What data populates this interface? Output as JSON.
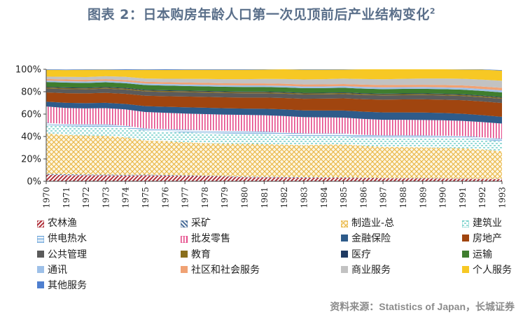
{
  "title": "图表 2：日本购房年龄人口第一次见顶前后产业结构变化",
  "title_sup": "2",
  "source": "资料来源：Statistics of Japan，长城证券",
  "chart_data": {
    "type": "area",
    "stacked": true,
    "x": [
      "1970",
      "1971",
      "1972",
      "1973",
      "1974",
      "1975",
      "1976",
      "1977",
      "1978",
      "1979",
      "1980",
      "1981",
      "1982",
      "1983",
      "1984",
      "1985",
      "1986",
      "1987",
      "1988",
      "1989",
      "1990",
      "1991",
      "1992",
      "1993"
    ],
    "y_ticks": [
      "0%",
      "20%",
      "40%",
      "60%",
      "80%",
      "100%"
    ],
    "ylim": [
      0,
      100
    ],
    "grid": false,
    "legend_position": "bottom",
    "series": [
      {
        "name": "农林渔",
        "color": "#b0303a",
        "pattern": "diag-red",
        "values": [
          5.9,
          5.5,
          5.4,
          5.3,
          5.1,
          5.3,
          5.1,
          4.8,
          4.6,
          4.3,
          3.6,
          3.5,
          3.4,
          3.2,
          3.2,
          3.1,
          2.9,
          2.7,
          2.6,
          2.5,
          2.4,
          2.3,
          2.1,
          2.0
        ]
      },
      {
        "name": "采矿",
        "color": "#4a6e9a",
        "pattern": "diag-blue",
        "values": [
          0.8,
          0.8,
          0.7,
          0.7,
          0.7,
          0.6,
          0.6,
          0.6,
          0.5,
          0.5,
          0.5,
          0.5,
          0.5,
          0.5,
          0.4,
          0.4,
          0.4,
          0.3,
          0.3,
          0.3,
          0.3,
          0.2,
          0.2,
          0.2
        ]
      },
      {
        "name": "制造业-总",
        "color": "#e8b23a",
        "pattern": "cross-yellow",
        "values": [
          36.0,
          35.2,
          34.8,
          34.6,
          33.5,
          30.5,
          30.2,
          29.5,
          29.0,
          28.8,
          29.4,
          29.3,
          28.9,
          28.6,
          29.2,
          29.5,
          28.5,
          27.8,
          27.7,
          27.5,
          27.2,
          27.0,
          26.1,
          24.6
        ]
      },
      {
        "name": "建筑业",
        "color": "#5cc7c0",
        "pattern": "dash-cyan",
        "values": [
          7.5,
          7.6,
          7.8,
          8.1,
          8.2,
          8.6,
          8.4,
          8.7,
          8.9,
          9.0,
          8.9,
          8.5,
          8.1,
          7.6,
          7.1,
          6.9,
          7.0,
          7.4,
          7.8,
          8.1,
          8.5,
          8.6,
          8.6,
          8.7
        ]
      },
      {
        "name": "供电热水",
        "color": "#5a9ad6",
        "pattern": "hbox-blue",
        "values": [
          2.1,
          2.1,
          2.2,
          2.2,
          2.2,
          2.2,
          2.3,
          2.4,
          2.6,
          2.6,
          2.5,
          2.6,
          2.7,
          2.8,
          2.8,
          2.8,
          2.8,
          2.7,
          2.6,
          2.5,
          2.4,
          2.4,
          2.4,
          2.5
        ]
      },
      {
        "name": "批发零售",
        "color": "#e54a8a",
        "pattern": "vstripe-pink",
        "values": [
          14.5,
          14.3,
          14.2,
          14.4,
          14.5,
          14.7,
          14.6,
          14.5,
          14.4,
          14.3,
          14.4,
          14.6,
          14.7,
          14.6,
          14.4,
          14.2,
          14.1,
          14.0,
          13.9,
          13.9,
          13.7,
          13.5,
          13.5,
          13.6
        ]
      },
      {
        "name": "金融保险",
        "color": "#2e5b8a",
        "pattern": "",
        "values": [
          4.3,
          4.6,
          4.7,
          4.8,
          4.9,
          5.2,
          5.4,
          5.6,
          5.7,
          5.7,
          5.6,
          5.8,
          5.9,
          6.0,
          6.1,
          6.3,
          6.5,
          6.6,
          6.6,
          6.6,
          6.5,
          6.3,
          6.2,
          6.0
        ]
      },
      {
        "name": "房地产",
        "color": "#a0450f",
        "pattern": "",
        "values": [
          8.3,
          8.6,
          8.7,
          8.9,
          9.0,
          9.3,
          9.4,
          9.6,
          9.7,
          9.8,
          9.9,
          10.0,
          10.2,
          10.4,
          10.6,
          10.9,
          11.1,
          11.4,
          11.6,
          11.8,
          11.9,
          12.1,
          12.2,
          12.3
        ]
      },
      {
        "name": "公共管理",
        "color": "#5b5b5b",
        "pattern": "",
        "values": [
          3.5,
          3.6,
          3.6,
          3.7,
          3.8,
          3.8,
          3.8,
          3.8,
          3.8,
          3.8,
          3.8,
          3.8,
          3.8,
          3.8,
          3.8,
          3.8,
          3.8,
          3.8,
          3.8,
          3.8,
          3.8,
          3.8,
          3.8,
          3.8
        ]
      },
      {
        "name": "教育",
        "color": "#8a6f1c",
        "pattern": "",
        "values": [
          0.9,
          0.9,
          0.9,
          0.9,
          0.9,
          0.9,
          0.9,
          0.9,
          0.9,
          0.9,
          0.9,
          0.9,
          0.9,
          0.9,
          0.9,
          0.9,
          0.9,
          0.9,
          0.9,
          0.9,
          0.9,
          0.9,
          0.9,
          0.9
        ]
      },
      {
        "name": "医疗",
        "color": "#1f3a62",
        "pattern": "",
        "values": [
          0.6,
          0.6,
          0.6,
          0.6,
          0.6,
          0.6,
          0.6,
          0.6,
          0.6,
          0.6,
          0.6,
          0.6,
          0.6,
          0.6,
          0.6,
          0.6,
          0.6,
          0.6,
          0.6,
          0.6,
          0.6,
          0.6,
          0.6,
          0.6
        ]
      },
      {
        "name": "运输",
        "color": "#3f7d2e",
        "pattern": "",
        "values": [
          4.3,
          4.3,
          4.2,
          4.2,
          4.2,
          4.2,
          4.2,
          4.1,
          4.1,
          4.1,
          4.1,
          4.1,
          4.1,
          4.1,
          4.1,
          4.1,
          4.1,
          4.1,
          4.1,
          4.1,
          4.1,
          4.1,
          4.1,
          4.2
        ]
      },
      {
        "name": "通讯",
        "color": "#9ec0e8",
        "pattern": "",
        "values": [
          1.2,
          1.3,
          1.3,
          1.3,
          1.3,
          1.4,
          1.4,
          1.4,
          1.4,
          1.4,
          1.4,
          1.4,
          1.5,
          1.5,
          1.5,
          1.5,
          1.6,
          1.6,
          1.6,
          1.6,
          1.6,
          1.7,
          1.7,
          1.8
        ]
      },
      {
        "name": "社区和社会服务",
        "color": "#f0a274",
        "pattern": "",
        "values": [
          1.4,
          1.5,
          1.5,
          1.5,
          1.6,
          1.6,
          1.6,
          1.7,
          1.7,
          1.7,
          1.8,
          1.8,
          1.8,
          1.9,
          1.9,
          1.9,
          2.0,
          2.0,
          2.0,
          2.0,
          2.1,
          2.1,
          2.2,
          2.2
        ]
      },
      {
        "name": "商业服务",
        "color": "#c2c2c2",
        "pattern": "",
        "values": [
          2.2,
          2.4,
          2.5,
          2.6,
          2.8,
          2.9,
          3.1,
          3.3,
          3.5,
          3.7,
          3.8,
          4.0,
          4.2,
          4.4,
          4.6,
          4.8,
          5.0,
          5.2,
          5.4,
          5.6,
          5.8,
          6.0,
          6.2,
          6.4
        ]
      },
      {
        "name": "个人服务",
        "color": "#f7c824",
        "pattern": "",
        "values": [
          6.0,
          6.0,
          6.4,
          5.8,
          6.1,
          7.7,
          7.8,
          8.0,
          8.1,
          8.3,
          8.3,
          8.3,
          8.8,
          8.7,
          8.4,
          8.0,
          8.8,
          9.0,
          8.5,
          8.4,
          8.2,
          8.2,
          8.9,
          9.0
        ]
      },
      {
        "name": "其他服务",
        "color": "#4f7fcf",
        "pattern": "",
        "values": [
          0.5,
          0.5,
          0.5,
          0.5,
          0.6,
          0.6,
          0.6,
          0.5,
          0.5,
          0.5,
          0.5,
          0.5,
          0.5,
          0.5,
          0.5,
          0.5,
          0.5,
          0.5,
          0.5,
          0.5,
          0.5,
          0.5,
          0.5,
          0.5
        ]
      }
    ]
  }
}
